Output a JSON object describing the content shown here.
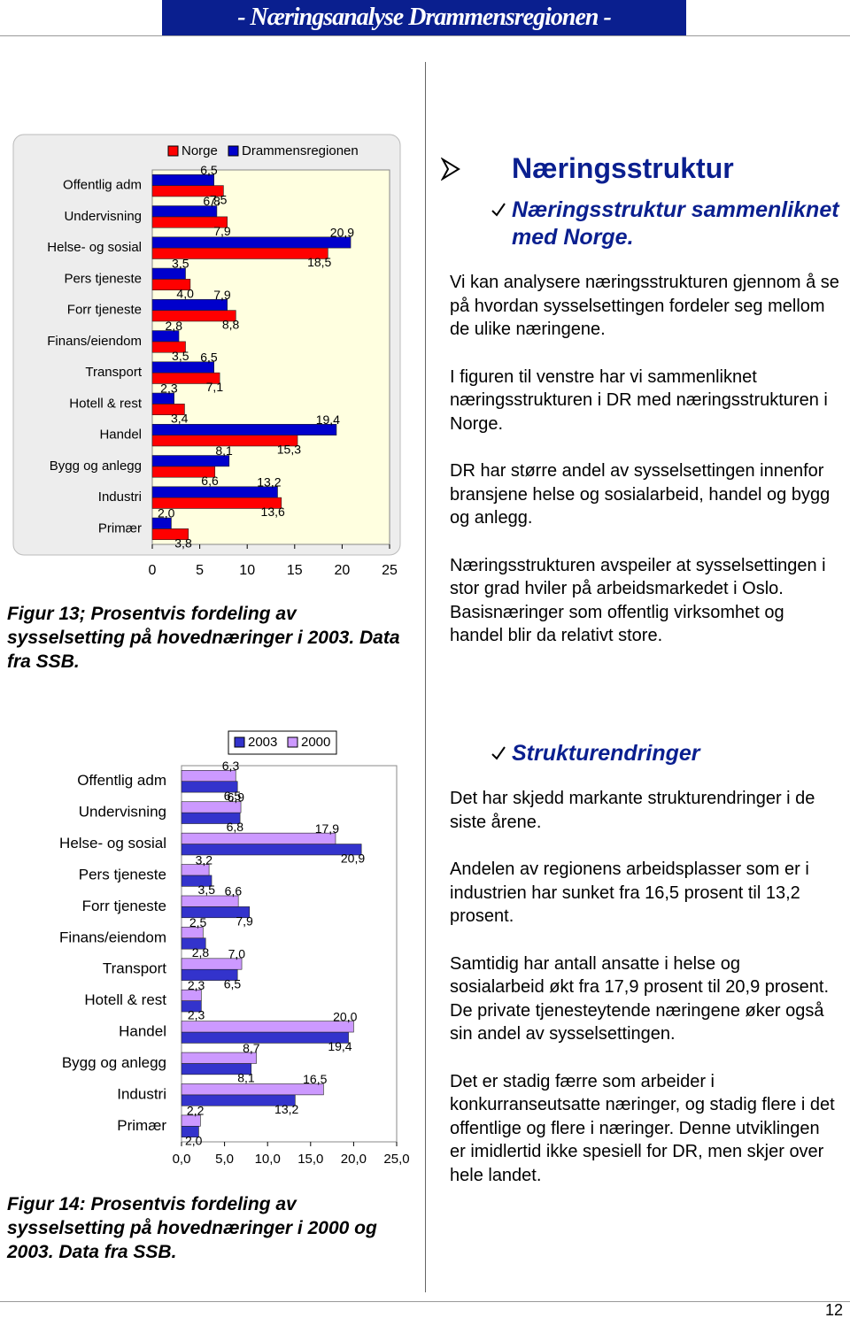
{
  "header": {
    "title": "- Næringsanalyse Drammensregionen -"
  },
  "chart_data": [
    {
      "type": "bar",
      "orientation": "horizontal",
      "legend": "top",
      "grid": false,
      "background": "#ffffe0",
      "categories": [
        "Offentlig adm",
        "Undervisning",
        "Helse- og sosial",
        "Pers tjeneste",
        "Forr tjeneste",
        "Finans/eiendom",
        "Transport",
        "Hotell & rest",
        "Handel",
        "Bygg og anlegg",
        "Industri",
        "Primær"
      ],
      "series": [
        {
          "name": "Norge",
          "color": "#ff0000",
          "values": [
            7.5,
            7.9,
            18.5,
            4.0,
            8.8,
            3.5,
            7.1,
            3.4,
            15.3,
            6.6,
            13.6,
            3.8
          ],
          "value_labels": [
            "7,5",
            "7,9",
            "18,5",
            "4,0",
            "8,8",
            "3,5",
            "7,1",
            "3,4",
            "15,3",
            "6,6",
            "13,6",
            "3,8"
          ]
        },
        {
          "name": "Drammensregionen",
          "color": "#0000cc",
          "values": [
            6.5,
            6.8,
            20.9,
            3.5,
            7.9,
            2.8,
            6.5,
            2.3,
            19.4,
            8.1,
            13.2,
            2.0
          ],
          "value_labels": [
            "6,5",
            "6,8",
            "20,9",
            "3,5",
            "7,9",
            "2,8",
            "6,5",
            "2,3",
            "19,4",
            "8,1",
            "13,2",
            "2,0"
          ]
        }
      ],
      "xlim": [
        0,
        25
      ],
      "xticks": [
        0,
        5,
        10,
        15,
        20,
        25
      ]
    },
    {
      "type": "bar",
      "orientation": "horizontal",
      "legend": "top",
      "grid": false,
      "background": "#ffffff",
      "categories": [
        "Offentlig adm",
        "Undervisning",
        "Helse- og sosial",
        "Pers tjeneste",
        "Forr tjeneste",
        "Finans/eiendom",
        "Transport",
        "Hotell & rest",
        "Handel",
        "Bygg og anlegg",
        "Industri",
        "Primær"
      ],
      "series": [
        {
          "name": "2003",
          "color": "#3333cc",
          "values": [
            6.5,
            6.8,
            20.9,
            3.5,
            7.9,
            2.8,
            6.5,
            2.3,
            19.4,
            8.1,
            13.2,
            2.0
          ],
          "value_labels": [
            "6,5",
            "6,8",
            "20,9",
            "3,5",
            "7,9",
            "2,8",
            "6,5",
            "2,3",
            "19,4",
            "8,1",
            "13,2",
            "2,0"
          ]
        },
        {
          "name": "2000",
          "color": "#cc99ff",
          "values": [
            6.3,
            6.9,
            17.9,
            3.2,
            6.6,
            2.5,
            7.0,
            2.3,
            20.0,
            8.7,
            16.5,
            2.2
          ],
          "value_labels": [
            "6,3",
            "6,9",
            "17,9",
            "3,2",
            "6,6",
            "2,5",
            "7,0",
            "2,3",
            "20,0",
            "8,7",
            "16,5",
            "2,2"
          ]
        }
      ],
      "xlim": [
        0,
        25
      ],
      "xticks": [
        {
          "value": 0,
          "label": "0,0"
        },
        {
          "value": 5,
          "label": "5,0"
        },
        {
          "value": 10,
          "label": "10,0"
        },
        {
          "value": 15,
          "label": "15,0"
        },
        {
          "value": 20,
          "label": "20,0"
        },
        {
          "value": 25,
          "label": "25,0"
        }
      ]
    }
  ],
  "figures": [
    {
      "caption": "Figur 13; Prosentvis fordeling av sysselsetting på hovednæringer i 2003. Data fra SSB."
    },
    {
      "caption": "Figur 14: Prosentvis fordeling av sysselsetting på hovednæringer i 2000 og 2003. Data fra SSB."
    }
  ],
  "sections": [
    {
      "heading": "Næringsstruktur",
      "subheading": "Næringsstruktur sammenliknet med Norge.",
      "paragraphs": [
        "Vi kan analysere næringsstrukturen gjennom å se på hvordan sysselsettingen fordeler seg mellom de ulike næringene.",
        "I figuren til venstre har vi sammenliknet næringsstrukturen i DR med næringsstrukturen i Norge.",
        "DR har større andel av sysselsettingen innenfor bransjene helse og sosialarbeid, handel og bygg og anlegg.",
        "Næringsstrukturen avspeiler at sysselsettingen i stor grad hviler på arbeidsmarkedet i Oslo. Basisnæringer som offentlig virksomhet og handel blir da relativt store."
      ]
    },
    {
      "subheading": "Strukturendringer",
      "paragraphs": [
        "Det har skjedd markante strukturendringer i de siste årene.",
        "Andelen av regionens arbeidsplasser som er i industrien har sunket fra 16,5 prosent til 13,2 prosent.",
        "Samtidig har antall ansatte i helse og sosialarbeid økt fra 17,9 prosent til 20,9 prosent. De private tjenesteytende næringene øker også sin andel av sysselsettingen.",
        "Det er stadig færre som arbeider i konkurranseutsatte næringer, og stadig flere i det offentlige og flere i næringer. Denne utviklingen er imidlertid ikke spesiell for DR, men skjer over hele landet."
      ]
    }
  ],
  "page_number": "12"
}
